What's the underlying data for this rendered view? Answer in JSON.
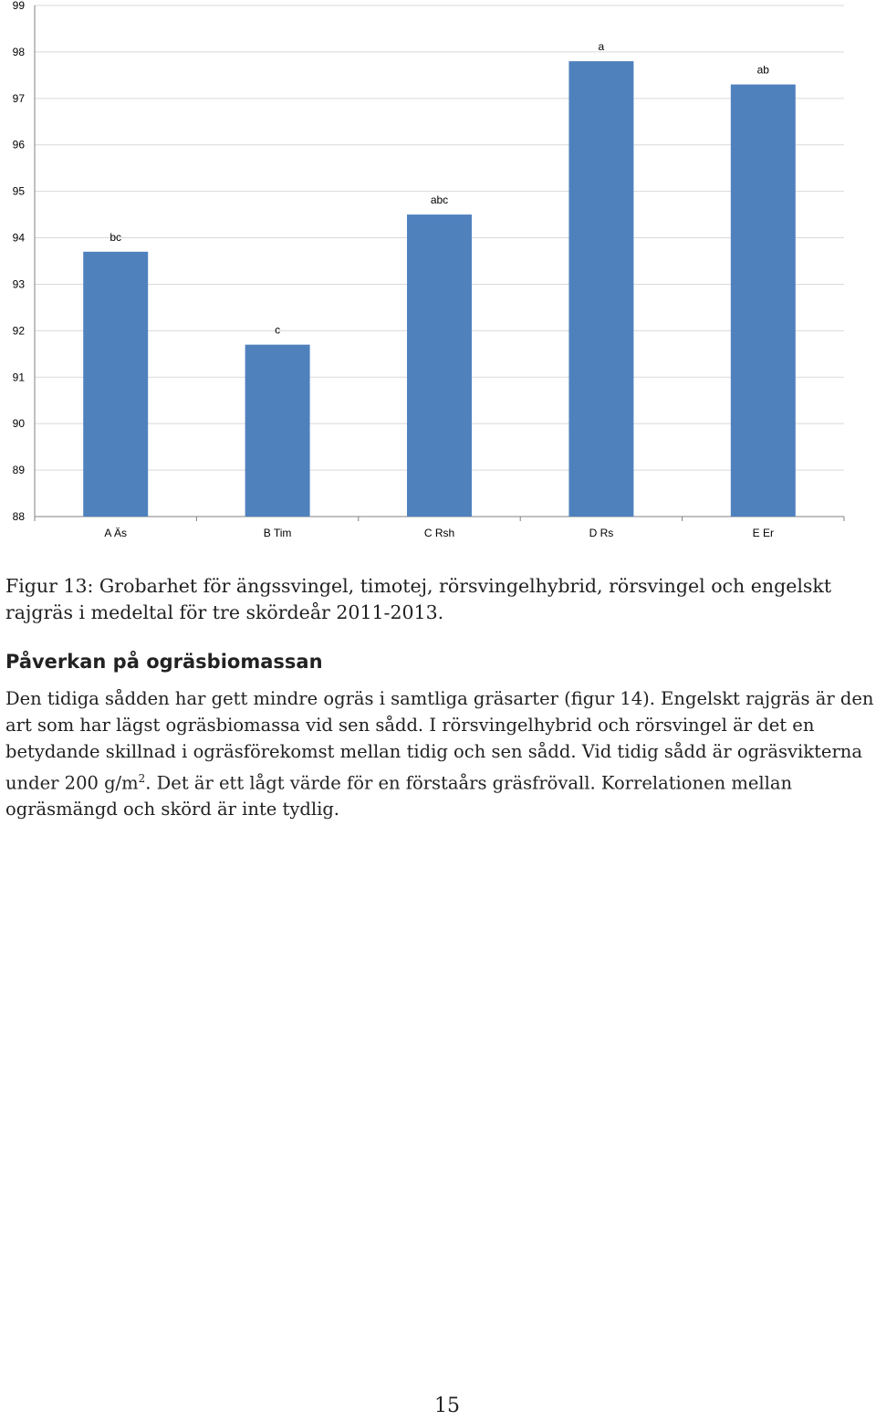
{
  "chart_data": {
    "type": "bar",
    "categories": [
      "A Äs",
      "B Tim",
      "C Rsh",
      "D Rs",
      "E Er"
    ],
    "values": [
      93.7,
      91.7,
      94.5,
      97.8,
      97.3
    ],
    "data_labels": [
      "bc",
      "c",
      "abc",
      "a",
      "ab"
    ],
    "ylim": [
      88,
      99
    ],
    "yticks": [
      88,
      89,
      90,
      91,
      92,
      93,
      94,
      95,
      96,
      97,
      98,
      99
    ],
    "grid": true,
    "legend": "none",
    "bar_color": "#4f81bd",
    "grid_color": "#d9d9d9"
  },
  "caption": "Figur 13: Grobarhet för ängssvingel, timotej, rörsvingelhybrid, rörsvingel och engelskt rajgräs i medeltal för tre skördeår 2011-2013.",
  "heading": "Påverkan på ogräsbiomassan",
  "body": {
    "before_sup": "Den tidiga sådden har gett mindre ogräs i samtliga gräsarter (figur 14). Engelskt rajgräs är den art som har lägst ogräsbiomassa vid sen sådd. I rörsvingelhybrid och rörsvingel är det en betydande skillnad i ogräsförekomst mellan tidig och sen sådd. Vid tidig sådd är ogräsvikterna under 200 g/m",
    "sup": "2",
    "after_sup": ". Det är ett lågt värde för en förstaårs gräsfrövall. Korrelationen mellan ogräsmängd och skörd är inte tydlig."
  },
  "page_number": "15"
}
